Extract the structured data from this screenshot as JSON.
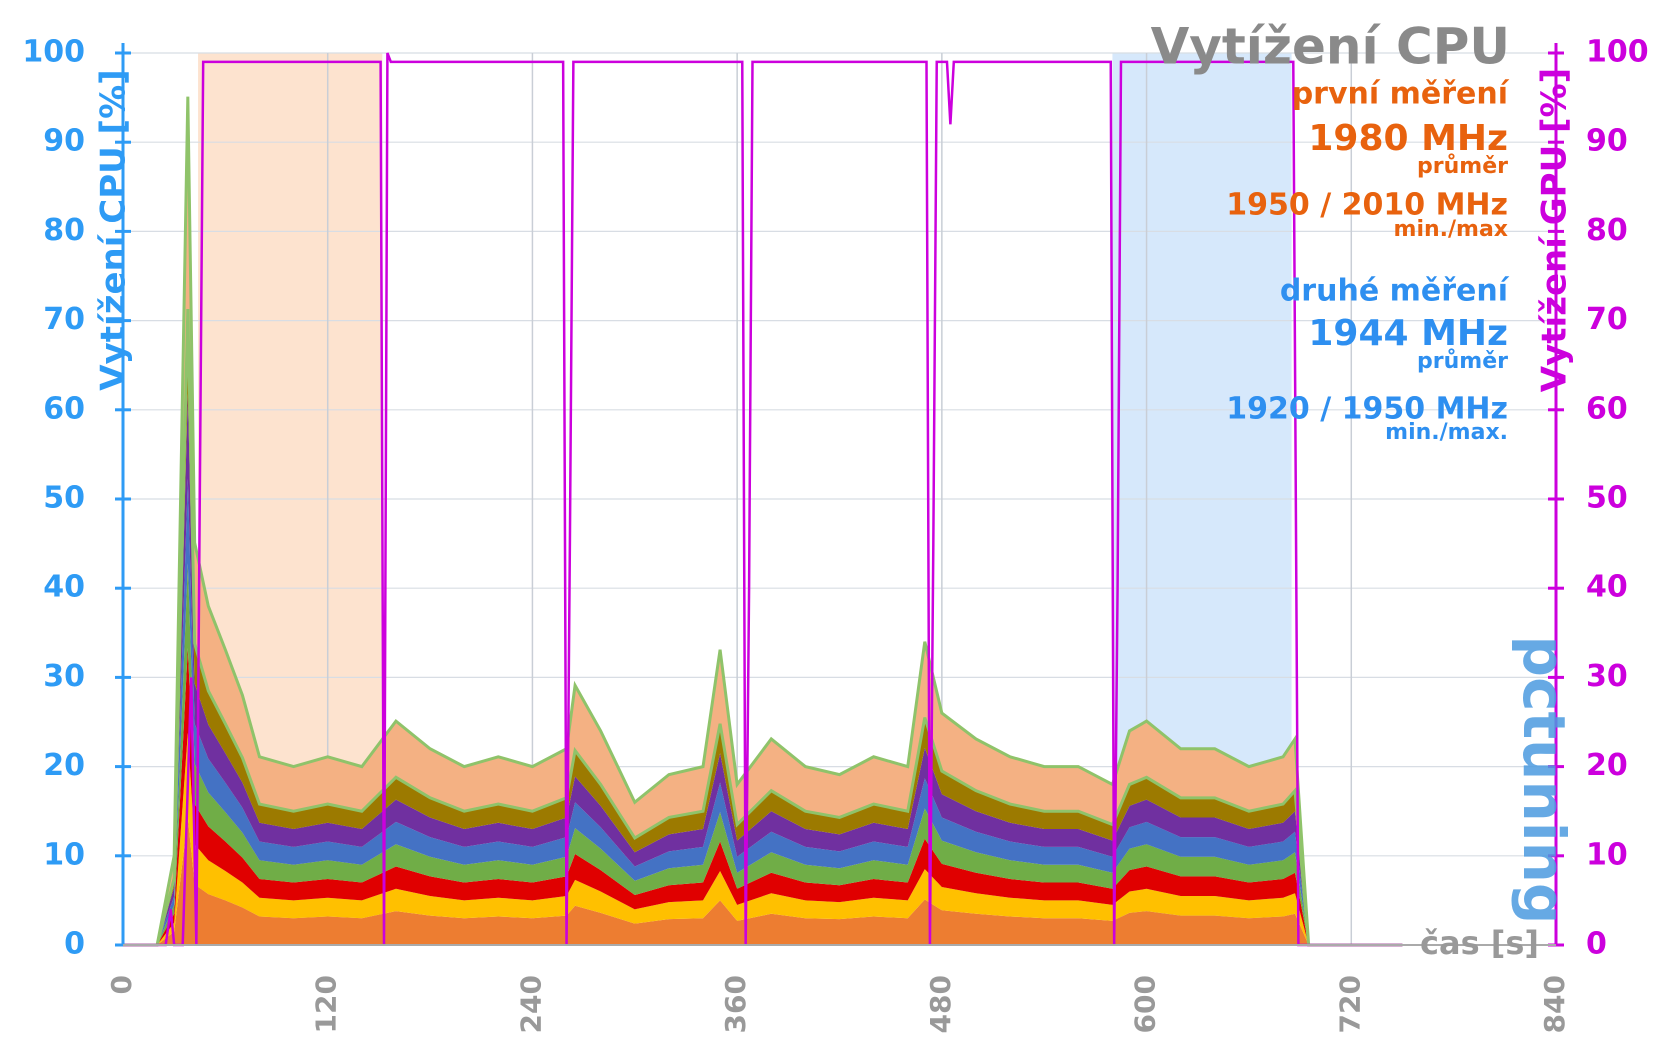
{
  "chart_data": {
    "type": "stacked-area",
    "title": "Vytížení CPU",
    "y_label": "Vytížení CPU [%]",
    "y2_label": "Vytížení GPU [%]",
    "x_label": "čas [s]",
    "annotations": [
      {
        "text": "první měření",
        "color": "#e8620e"
      },
      {
        "text": "1980 MHz",
        "color": "#e8620e"
      },
      {
        "text": "průměr",
        "color": "#e8620e"
      },
      {
        "text": "1950 / 2010 MHz",
        "color": "#e8620e"
      },
      {
        "text": "min./max",
        "color": "#e8620e"
      },
      {
        "text": "druhé měření",
        "color": "#2e8ff0"
      },
      {
        "text": "1944 MHz",
        "color": "#2e8ff0"
      },
      {
        "text": "průměr",
        "color": "#2e8ff0"
      },
      {
        "text": "1920 / 1950 MHz",
        "color": "#2e8ff0"
      },
      {
        "text": "min./max.",
        "color": "#2e8ff0"
      }
    ],
    "watermark": "pctuning",
    "regions": [
      {
        "x": [
          44,
          152
        ],
        "color": "#fde3cf"
      },
      {
        "x": [
          580,
          685
        ],
        "color": "#d6e8fb"
      }
    ],
    "x": [
      0,
      20,
      30,
      38,
      42,
      50,
      60,
      70,
      80,
      100,
      120,
      140,
      160,
      180,
      200,
      220,
      240,
      260,
      265,
      280,
      300,
      320,
      340,
      350,
      360,
      380,
      400,
      420,
      440,
      460,
      470,
      480,
      500,
      520,
      540,
      560,
      580,
      590,
      600,
      620,
      640,
      660,
      680,
      687,
      695,
      720,
      750
    ],
    "series": [
      {
        "color": "#ed7d31",
        "values": [
          0,
          0,
          1.5,
          14.3,
          6.8,
          5.7,
          5,
          4.2,
          3.2,
          3,
          3.2,
          3,
          3.8,
          3.3,
          3,
          3.2,
          3,
          3.3,
          4.4,
          3.6,
          2.4,
          2.9,
          3,
          5,
          2.7,
          3.5,
          3,
          2.9,
          3.2,
          3,
          5.1,
          3.9,
          3.5,
          3.2,
          3,
          3,
          2.7,
          3.6,
          3.8,
          3.3,
          3.3,
          3,
          3.2,
          3.5,
          0,
          0,
          0
        ]
      },
      {
        "color": "#ffc000",
        "values": [
          0,
          0,
          1,
          9.5,
          4.5,
          3.8,
          3.3,
          2.8,
          2.1,
          2,
          2.1,
          2,
          2.5,
          2.2,
          2,
          2.1,
          2,
          2.2,
          2.9,
          2.4,
          1.6,
          1.9,
          2,
          3.3,
          1.8,
          2.3,
          2,
          1.9,
          2.1,
          2,
          3.4,
          2.6,
          2.3,
          2.1,
          2,
          2,
          1.8,
          2.4,
          2.5,
          2.2,
          2.2,
          2,
          2.1,
          2.3,
          0,
          0,
          0
        ]
      },
      {
        "color": "#e00000",
        "values": [
          0,
          0,
          1,
          9.5,
          4.5,
          3.8,
          3.3,
          2.8,
          2.1,
          2,
          2.1,
          2,
          2.5,
          2.2,
          2,
          2.1,
          2,
          2.2,
          2.9,
          2.4,
          1.6,
          1.9,
          2,
          3.3,
          1.8,
          2.3,
          2,
          1.9,
          2.1,
          2,
          3.4,
          2.6,
          2.3,
          2.1,
          2,
          2,
          1.8,
          2.4,
          2.5,
          2.2,
          2.2,
          2,
          2.1,
          2.3,
          0,
          0,
          0
        ]
      },
      {
        "color": "#70ad47",
        "values": [
          0,
          0,
          1,
          9.5,
          4.5,
          3.8,
          3.3,
          2.8,
          2.1,
          2,
          2.1,
          2,
          2.5,
          2.2,
          2,
          2.1,
          2,
          2.2,
          2.9,
          2.4,
          1.6,
          1.9,
          2,
          3.3,
          1.8,
          2.3,
          2,
          1.9,
          2.1,
          2,
          3.4,
          2.6,
          2.3,
          2.1,
          2,
          2,
          1.8,
          2.4,
          2.5,
          2.2,
          2.2,
          2,
          2.1,
          2.3,
          0,
          0,
          0
        ]
      },
      {
        "color": "#4472c4",
        "values": [
          0,
          0,
          1,
          9.5,
          4.5,
          3.8,
          3.3,
          2.8,
          2.1,
          2,
          2.1,
          2,
          2.5,
          2.2,
          2,
          2.1,
          2,
          2.2,
          2.9,
          2.4,
          1.6,
          1.9,
          2,
          3.3,
          1.8,
          2.3,
          2,
          1.9,
          2.1,
          2,
          3.4,
          2.6,
          2.3,
          2.1,
          2,
          2,
          1.8,
          2.4,
          2.5,
          2.2,
          2.2,
          2,
          2.1,
          2.3,
          0,
          0,
          0
        ]
      },
      {
        "color": "#7030a0",
        "values": [
          0,
          0,
          1,
          9.5,
          4.5,
          3.8,
          3.3,
          2.8,
          2.1,
          2,
          2.1,
          2,
          2.5,
          2.2,
          2,
          2.1,
          2,
          2.2,
          2.9,
          2.4,
          1.6,
          1.9,
          2,
          3.3,
          1.8,
          2.3,
          2,
          1.9,
          2.1,
          2,
          3.4,
          2.6,
          2.3,
          2.1,
          2,
          2,
          1.8,
          2.4,
          2.5,
          2.2,
          2.2,
          2,
          2.1,
          2.3,
          0,
          0,
          0
        ]
      },
      {
        "color": "#9c7a00",
        "values": [
          0,
          0,
          1,
          9.5,
          4.5,
          3.8,
          3.3,
          2.8,
          2.1,
          2,
          2.1,
          2,
          2.5,
          2.2,
          2,
          2.1,
          2,
          2.2,
          2.9,
          2.4,
          1.6,
          1.9,
          2,
          3.3,
          1.8,
          2.3,
          2,
          1.9,
          2.1,
          2,
          3.4,
          2.6,
          2.3,
          2.1,
          2,
          2,
          1.8,
          2.4,
          2.5,
          2.2,
          2.2,
          2,
          2.1,
          2.3,
          0,
          0,
          0
        ]
      },
      {
        "color": "#f4b183",
        "values": [
          0,
          0,
          2.5,
          23.8,
          11.3,
          9.5,
          8.3,
          7,
          5.3,
          5,
          5.3,
          5,
          6.3,
          5.5,
          5,
          5.3,
          5,
          5.5,
          7.3,
          6,
          4,
          4.8,
          5,
          8.3,
          4.5,
          5.8,
          5,
          4.8,
          5.3,
          5,
          8.5,
          6.5,
          5.8,
          5.3,
          5,
          5,
          4.5,
          6,
          6.3,
          5.5,
          5.5,
          5,
          5.3,
          5.8,
          0,
          0,
          0
        ]
      }
    ],
    "top_colors": [
      "#ffd966",
      "#8fc36a"
    ],
    "gpu": {
      "color": "#cc00dd",
      "axis": "y2",
      "x": [
        0,
        25,
        28,
        30,
        35,
        40,
        43,
        45,
        47,
        151,
        153,
        155,
        157,
        258,
        260,
        262,
        264,
        363,
        365,
        367,
        369,
        471,
        473,
        475,
        477,
        483,
        485,
        487,
        579,
        581,
        583,
        585,
        686,
        689,
        750
      ],
      "values": [
        0,
        0,
        4,
        0,
        0,
        30,
        0,
        50,
        99,
        99,
        0,
        100,
        99,
        99,
        0,
        46,
        99,
        99,
        0,
        40,
        99,
        99,
        0,
        45,
        99,
        99,
        92,
        99,
        99,
        0,
        40,
        99,
        99,
        0,
        0
      ]
    },
    "xlim": [
      0,
      840
    ],
    "xticks": [
      0,
      120,
      240,
      360,
      480,
      600,
      720,
      840
    ],
    "ylim": [
      0,
      100
    ],
    "yticks": [
      0,
      10,
      20,
      30,
      40,
      50,
      60,
      70,
      80,
      90,
      100
    ],
    "y2lim": [
      0,
      100
    ],
    "y2ticks": [
      0,
      10,
      20,
      30,
      40,
      50,
      60,
      70,
      80,
      90,
      100
    ],
    "grid": true
  }
}
